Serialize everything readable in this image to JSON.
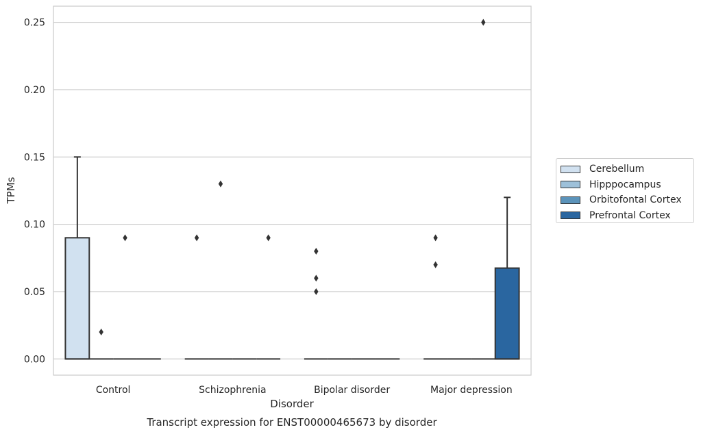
{
  "chart_data": {
    "type": "box",
    "xlabel": "Disorder",
    "ylabel": "TPMs",
    "caption": "Transcript expression for ENST00000465673 by disorder",
    "ylim": [
      -0.012,
      0.262
    ],
    "yticks": [
      0.0,
      0.05,
      0.1,
      0.15,
      0.2,
      0.25
    ],
    "ytick_labels": [
      "0.00",
      "0.05",
      "0.10",
      "0.15",
      "0.20",
      "0.25"
    ],
    "grid": "horizontal",
    "legend_placement": "right",
    "categories": [
      "Control",
      "Schizophrenia",
      "Bipolar disorder",
      "Major depression"
    ],
    "series": [
      {
        "name": "Cerebellum",
        "color": "#d1e1f0",
        "boxes": [
          {
            "q1": 0.0,
            "median": 0.0,
            "q3": 0.09,
            "whislo": 0.0,
            "whishi": 0.15,
            "fliers": []
          },
          {
            "q1": 0.0,
            "median": 0.0,
            "q3": 0.0,
            "whislo": 0.0,
            "whishi": 0.0,
            "fliers": [
              0.09
            ]
          },
          {
            "q1": 0.0,
            "median": 0.0,
            "q3": 0.0,
            "whislo": 0.0,
            "whishi": 0.0,
            "fliers": [
              0.05,
              0.06,
              0.08
            ]
          },
          {
            "q1": 0.0,
            "median": 0.0,
            "q3": 0.0,
            "whislo": 0.0,
            "whishi": 0.0,
            "fliers": [
              0.07,
              0.09
            ]
          }
        ]
      },
      {
        "name": "Hipppocampus",
        "color": "#9dc0d9",
        "boxes": [
          {
            "q1": 0.0,
            "median": 0.0,
            "q3": 0.0,
            "whislo": 0.0,
            "whishi": 0.0,
            "fliers": [
              0.02
            ]
          },
          {
            "q1": 0.0,
            "median": 0.0,
            "q3": 0.0,
            "whislo": 0.0,
            "whishi": 0.0,
            "fliers": [
              0.13
            ]
          },
          {
            "q1": 0.0,
            "median": 0.0,
            "q3": 0.0,
            "whislo": 0.0,
            "whishi": 0.0,
            "fliers": []
          },
          {
            "q1": 0.0,
            "median": 0.0,
            "q3": 0.0,
            "whislo": 0.0,
            "whishi": 0.0,
            "fliers": []
          }
        ]
      },
      {
        "name": "Orbitofontal Cortex",
        "color": "#5b93ba",
        "boxes": [
          {
            "q1": 0.0,
            "median": 0.0,
            "q3": 0.0,
            "whislo": 0.0,
            "whishi": 0.0,
            "fliers": [
              0.09
            ]
          },
          {
            "q1": 0.0,
            "median": 0.0,
            "q3": 0.0,
            "whislo": 0.0,
            "whishi": 0.0,
            "fliers": []
          },
          {
            "q1": 0.0,
            "median": 0.0,
            "q3": 0.0,
            "whislo": 0.0,
            "whishi": 0.0,
            "fliers": []
          },
          {
            "q1": 0.0,
            "median": 0.0,
            "q3": 0.0,
            "whislo": 0.0,
            "whishi": 0.0,
            "fliers": [
              0.25
            ]
          }
        ]
      },
      {
        "name": "Prefrontal Cortex",
        "color": "#2a66a0",
        "boxes": [
          {
            "q1": 0.0,
            "median": 0.0,
            "q3": 0.0,
            "whislo": 0.0,
            "whishi": 0.0,
            "fliers": []
          },
          {
            "q1": 0.0,
            "median": 0.0,
            "q3": 0.0,
            "whislo": 0.0,
            "whishi": 0.0,
            "fliers": [
              0.09
            ]
          },
          {
            "q1": 0.0,
            "median": 0.0,
            "q3": 0.0,
            "whislo": 0.0,
            "whishi": 0.0,
            "fliers": []
          },
          {
            "q1": 0.0,
            "median": 0.0,
            "q3": 0.0675,
            "whislo": 0.0,
            "whishi": 0.12,
            "fliers": []
          }
        ]
      }
    ]
  }
}
